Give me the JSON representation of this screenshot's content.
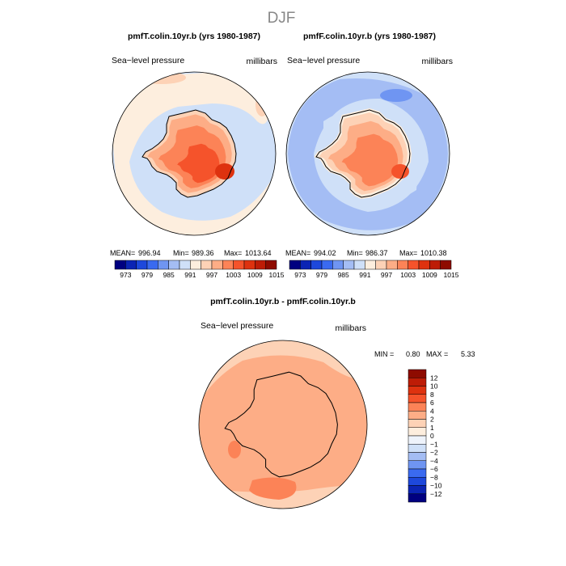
{
  "season": "DJF",
  "panels": [
    {
      "title": "pmfT.colin.10yr.b (yrs 1980-1987)",
      "variable": "Sea−level pressure",
      "units": "millibars",
      "mean_label": "MEAN=",
      "mean": "996.94",
      "min_label": "Min=",
      "min": "989.36",
      "max_label": "Max=",
      "max": "1013.64"
    },
    {
      "title": "pmfF.colin.10yr.b (yrs 1980-1987)",
      "variable": "Sea−level pressure",
      "units": "millibars",
      "mean_label": "MEAN=",
      "mean": "994.02",
      "min_label": "Min=",
      "min": "986.37",
      "max_label": "Max=",
      "max": "1010.38"
    }
  ],
  "diff": {
    "title": "pmfT.colin.10yr.b - pmfF.colin.10yr.b",
    "variable": "Sea−level pressure",
    "units": "millibars",
    "min_label": "MIN =",
    "min": "0.80",
    "max_label": "MAX =",
    "max": "5.33"
  },
  "chart_data": [
    {
      "type": "heatmap",
      "title": "pmfT.colin.10yr.b (yrs 1980-1987)",
      "projection": "south-polar stereographic",
      "colorbar": {
        "labels": [
          "973",
          "979",
          "985",
          "991",
          "997",
          "1003",
          "1009",
          "1015"
        ],
        "colors": [
          "#000080",
          "#0b24b4",
          "#1d48dc",
          "#3a6af0",
          "#6f95f2",
          "#a4bdf4",
          "#cfe0f8",
          "#fdeede",
          "#fdd2b6",
          "#fdad86",
          "#fc8357",
          "#f5532b",
          "#de320f",
          "#bd1c06",
          "#8e0b00"
        ]
      },
      "stats": {
        "mean": 996.94,
        "min": 989.36,
        "max": 1013.64
      }
    },
    {
      "type": "heatmap",
      "title": "pmfF.colin.10yr.b (yrs 1980-1987)",
      "projection": "south-polar stereographic",
      "colorbar": {
        "labels": [
          "973",
          "979",
          "985",
          "991",
          "997",
          "1003",
          "1009",
          "1015"
        ],
        "colors": [
          "#000080",
          "#0b24b4",
          "#1d48dc",
          "#3a6af0",
          "#6f95f2",
          "#a4bdf4",
          "#cfe0f8",
          "#fdeede",
          "#fdd2b6",
          "#fdad86",
          "#fc8357",
          "#f5532b",
          "#de320f",
          "#bd1c06",
          "#8e0b00"
        ]
      },
      "stats": {
        "mean": 994.02,
        "min": 986.37,
        "max": 1010.38
      }
    },
    {
      "type": "heatmap",
      "title": "pmfT.colin.10yr.b - pmfF.colin.10yr.b",
      "projection": "south-polar stereographic",
      "colorbar": {
        "labels": [
          "12",
          "10",
          "8",
          "6",
          "4",
          "2",
          "1",
          "0",
          "−1",
          "−2",
          "−4",
          "−6",
          "−8",
          "−10",
          "−12"
        ],
        "colors": [
          "#8e0b00",
          "#bd1c06",
          "#de320f",
          "#f5532b",
          "#fc8357",
          "#fdad86",
          "#fdd2b6",
          "#fdeede",
          "#eef3fb",
          "#cfe0f8",
          "#a4bdf4",
          "#6f95f2",
          "#3a6af0",
          "#1d48dc",
          "#0b24b4",
          "#000080"
        ]
      },
      "stats": {
        "min": 0.8,
        "max": 5.33
      }
    }
  ]
}
